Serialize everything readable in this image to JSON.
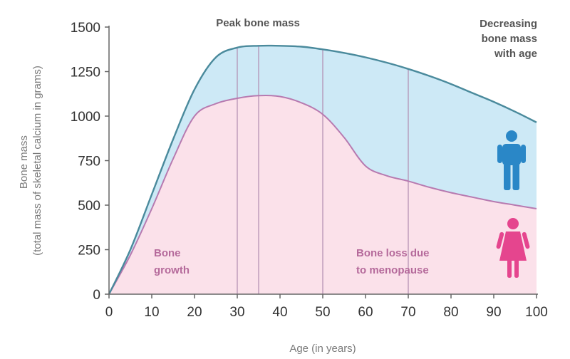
{
  "chart_data": {
    "type": "area",
    "title": "",
    "xlabel": "Age (in years)",
    "ylabel_lines": [
      "Bone mass",
      "(total mass of skeletal calcium in grams)"
    ],
    "xlim": [
      0,
      100
    ],
    "ylim": [
      0,
      1500
    ],
    "x_ticks": [
      0,
      10,
      20,
      30,
      40,
      50,
      60,
      70,
      80,
      90,
      100
    ],
    "y_ticks": [
      0,
      250,
      500,
      750,
      1000,
      1250,
      1500
    ],
    "grid": false,
    "series": [
      {
        "key": "male",
        "x": [
          0,
          5,
          10,
          15,
          20,
          25,
          30,
          35,
          40,
          45,
          50,
          55,
          60,
          65,
          70,
          75,
          80,
          85,
          90,
          95,
          100
        ],
        "y": [
          0,
          250,
          560,
          870,
          1150,
          1330,
          1385,
          1395,
          1395,
          1390,
          1375,
          1355,
          1330,
          1300,
          1265,
          1225,
          1180,
          1130,
          1080,
          1025,
          965
        ],
        "color": "#4a8a9c",
        "fill": "#cde9f6"
      },
      {
        "key": "female",
        "x": [
          0,
          5,
          10,
          15,
          20,
          25,
          30,
          35,
          40,
          45,
          50,
          55,
          60,
          65,
          70,
          75,
          80,
          85,
          90,
          95,
          100
        ],
        "y": [
          0,
          220,
          480,
          760,
          1000,
          1070,
          1100,
          1115,
          1110,
          1075,
          1010,
          880,
          720,
          665,
          635,
          600,
          570,
          545,
          520,
          500,
          480
        ],
        "color": "#b77ab0",
        "fill": "#fbe1ea"
      }
    ],
    "vertical_lines_x": [
      30,
      35,
      50,
      70
    ],
    "annotations": [
      {
        "key": "peak",
        "lines": [
          "Peak bone mass"
        ],
        "color": "#555555"
      },
      {
        "key": "decreasing",
        "lines": [
          "Decreasing",
          "bone mass",
          "with age"
        ],
        "color": "#555555"
      },
      {
        "key": "growth",
        "lines": [
          "Bone",
          "growth"
        ],
        "color": "#b56a9b"
      },
      {
        "key": "menopause",
        "lines": [
          "Bone loss due",
          "to menopause"
        ],
        "color": "#b56a9b"
      }
    ],
    "icons": [
      {
        "key": "male",
        "name": "male-figure-icon",
        "color": "#2a87c7"
      },
      {
        "key": "female",
        "name": "female-figure-icon",
        "color": "#e5458e"
      }
    ]
  }
}
